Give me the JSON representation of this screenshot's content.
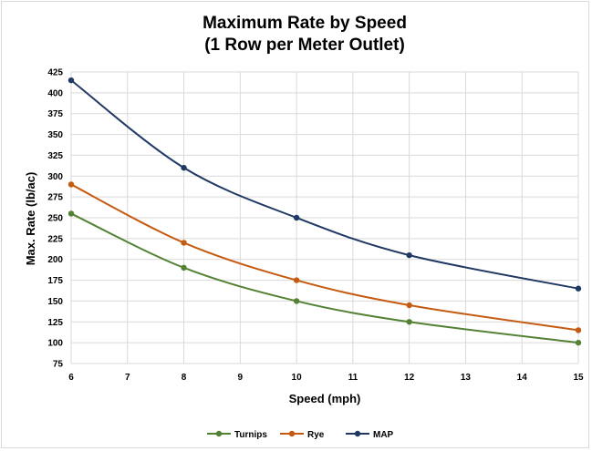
{
  "chart_data": {
    "type": "line",
    "title_lines": [
      "Maximum Rate by Speed",
      "(1 Row per Meter Outlet)"
    ],
    "xlabel": "Speed (mph)",
    "ylabel": "Max. Rate (lb/ac)",
    "xlim": [
      6,
      15
    ],
    "ylim": [
      75,
      425
    ],
    "x_ticks": [
      6,
      7,
      8,
      9,
      10,
      11,
      12,
      13,
      14,
      15
    ],
    "y_ticks": [
      75,
      100,
      125,
      150,
      175,
      200,
      225,
      250,
      275,
      300,
      325,
      350,
      375,
      400,
      425
    ],
    "grid": true,
    "legend_position": "bottom",
    "series": [
      {
        "name": "Turnips",
        "color": "#548235",
        "x": [
          6,
          8,
          10,
          12,
          15
        ],
        "y": [
          255,
          190,
          150,
          125,
          100
        ]
      },
      {
        "name": "Rye",
        "color": "#C55A11",
        "x": [
          6,
          8,
          10,
          12,
          15
        ],
        "y": [
          290,
          220,
          175,
          145,
          115
        ]
      },
      {
        "name": "MAP",
        "color": "#203864",
        "x": [
          6,
          8,
          10,
          12,
          15
        ],
        "y": [
          415,
          310,
          250,
          205,
          165
        ]
      }
    ]
  }
}
